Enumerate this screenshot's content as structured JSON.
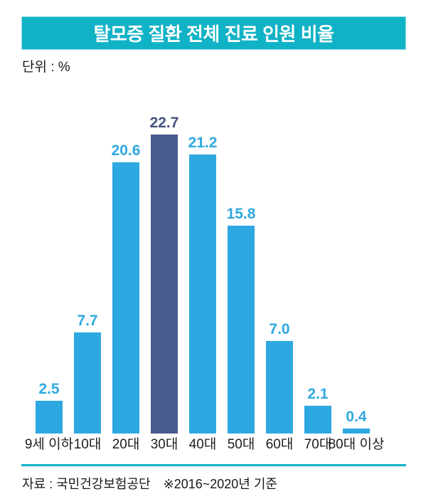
{
  "header": {
    "title": "탈모증 질환 전체 진료 인원 비율"
  },
  "unit_label": "단위 : %",
  "chart_data": {
    "type": "bar",
    "title": "탈모증 질환 전체 진료 인원 비율",
    "unit": "%",
    "categories": [
      "9세 이하",
      "10대",
      "20대",
      "30대",
      "40대",
      "50대",
      "60대",
      "70대",
      "80대 이상"
    ],
    "values": [
      2.5,
      7.7,
      20.6,
      22.7,
      21.2,
      15.8,
      7.0,
      2.1,
      0.4
    ],
    "value_labels": [
      "2.5",
      "7.7",
      "20.6",
      "22.7",
      "21.2",
      "15.8",
      "7.0",
      "2.1",
      "0.4"
    ],
    "highlight_index": 3,
    "bar_color": "#2EA8E0",
    "highlight_color": "#475B8D",
    "value_label_color": "#2EA8E0",
    "highlight_value_label_color": "#44527E",
    "ylim": [
      0,
      24.5
    ],
    "grid": false,
    "legend": "none",
    "xlabel": "",
    "ylabel": "%"
  },
  "footer": {
    "source": "자료 : 국민건강보험공단",
    "note": "※2016~2020년 기준"
  },
  "colors": {
    "accent_teal": "#10B2C6",
    "title_text": "#FFFFFF",
    "axis_label": "#1E1E1E",
    "footer_text": "#1A1A1A"
  }
}
